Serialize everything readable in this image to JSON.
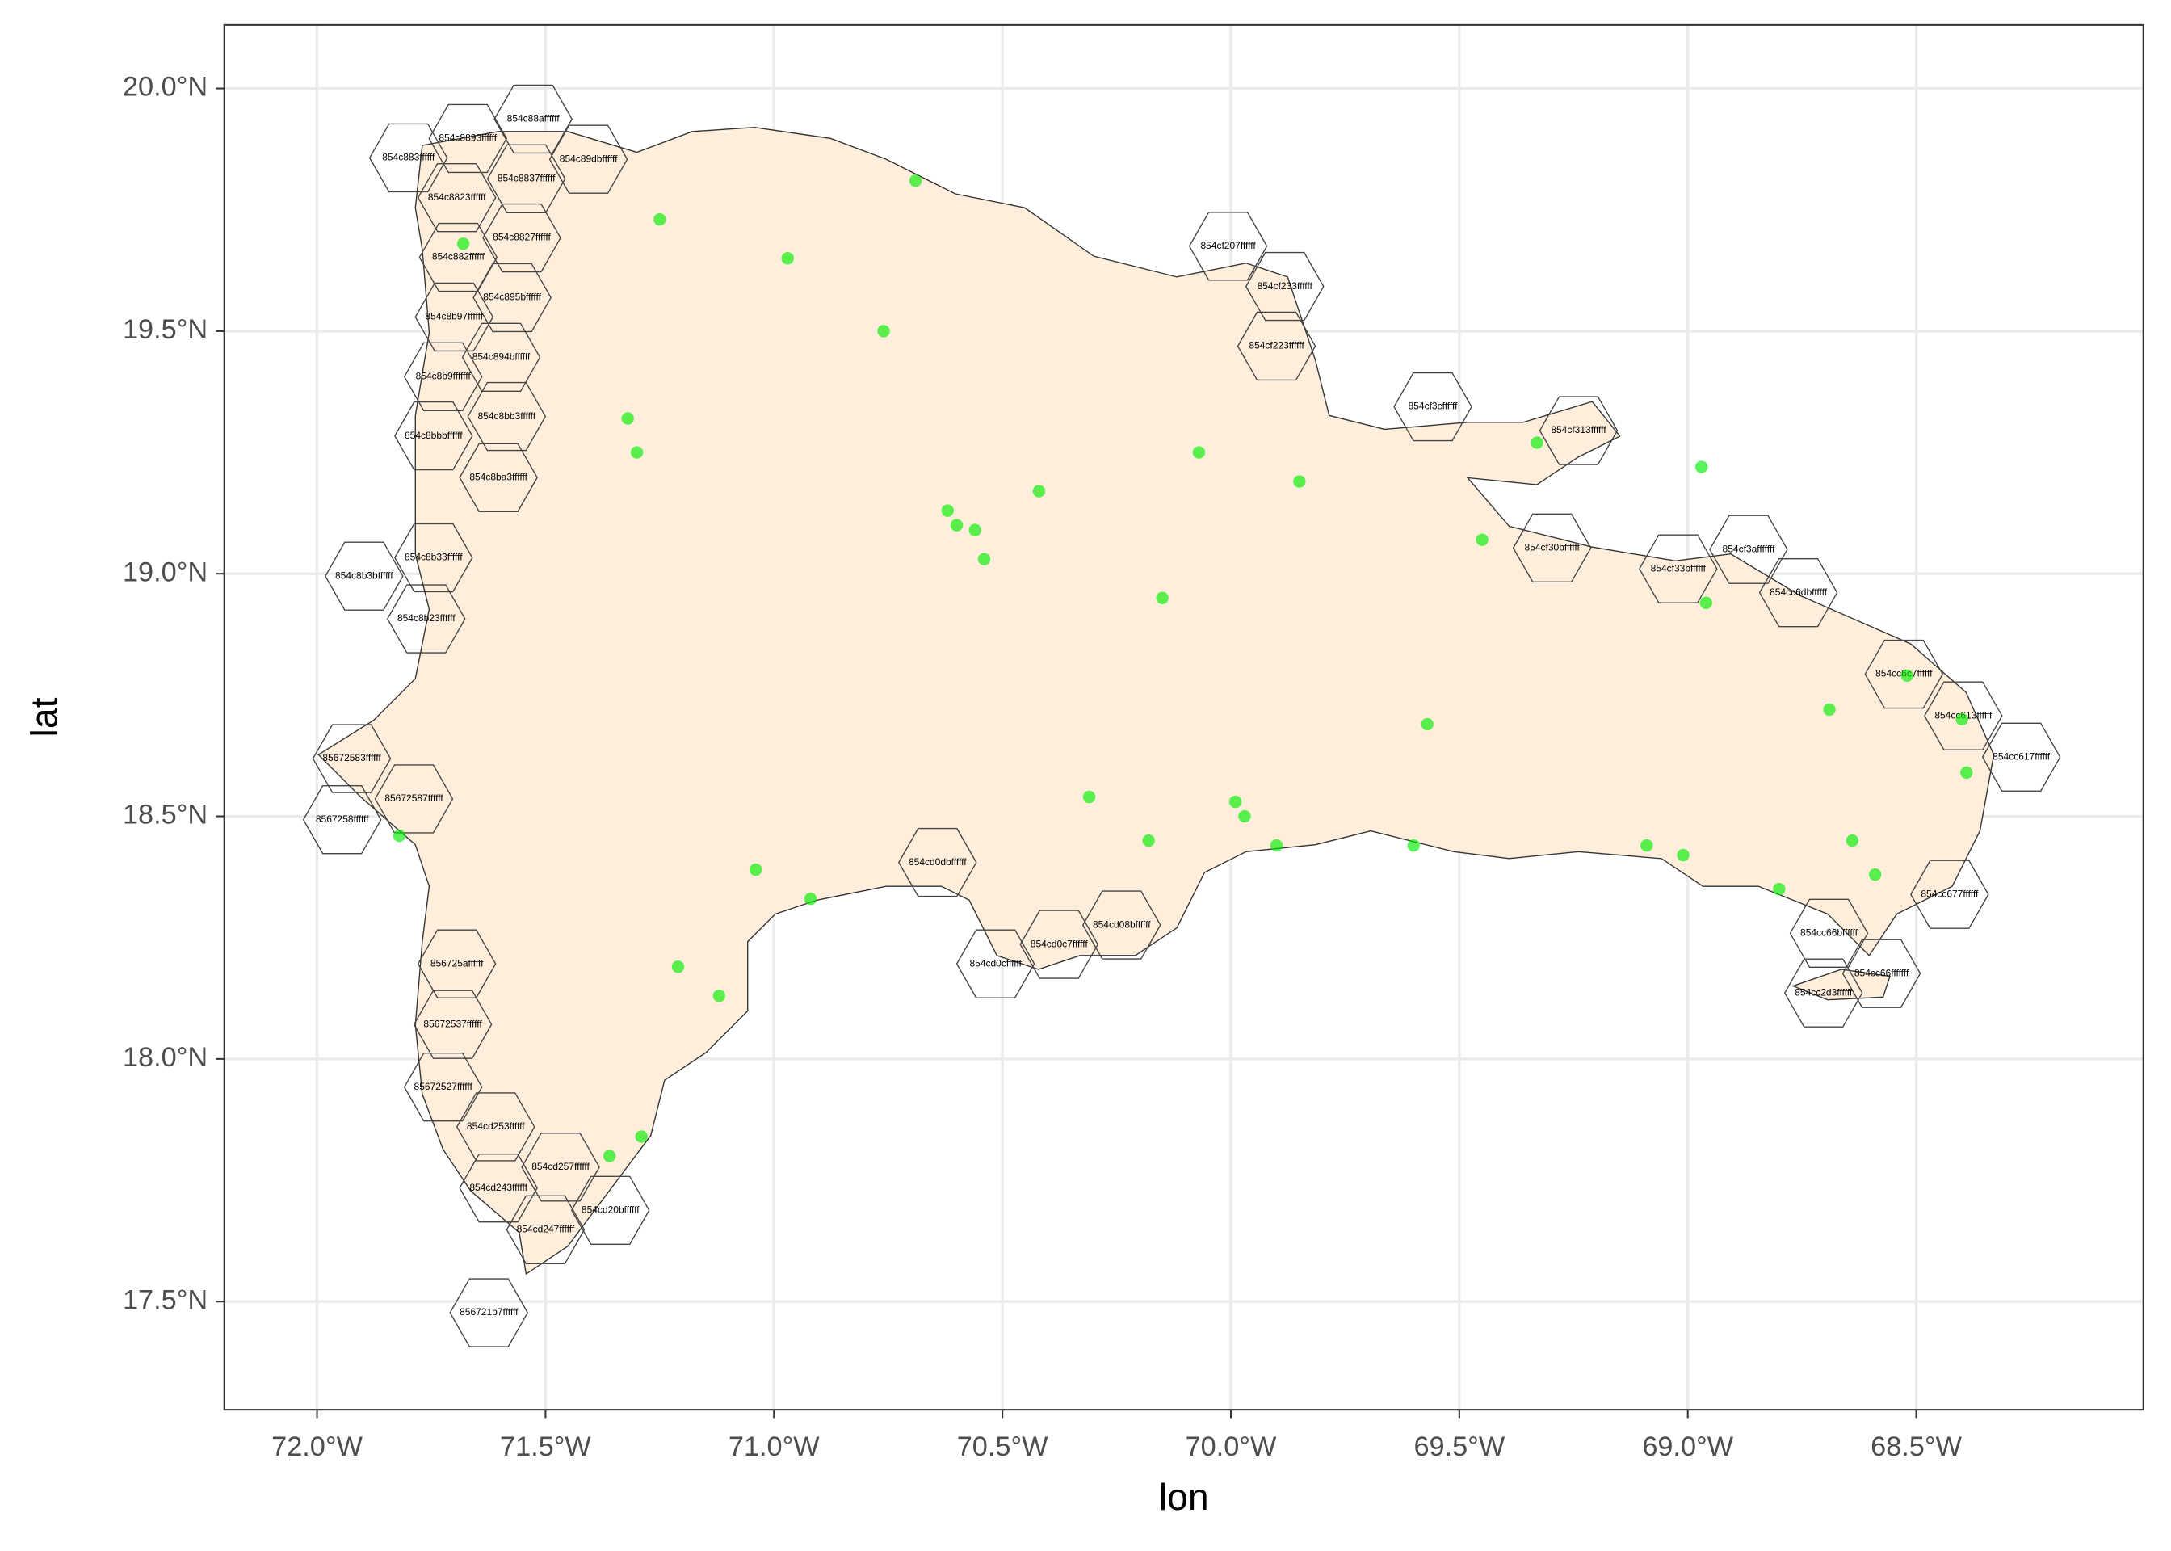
{
  "chart_data": {
    "type": "map",
    "xlabel": "lon",
    "ylabel": "lat",
    "xlim": [
      -72.203,
      -68.003
    ],
    "ylim": [
      17.277,
      20.131
    ],
    "xticks": [
      {
        "value": -72,
        "label": "72.0°W"
      },
      {
        "value": -71.5,
        "label": "71.5°W"
      },
      {
        "value": -71,
        "label": "71.0°W"
      },
      {
        "value": -70.5,
        "label": "70.5°W"
      },
      {
        "value": -70,
        "label": "70.0°W"
      },
      {
        "value": -69.5,
        "label": "69.5°W"
      },
      {
        "value": -69,
        "label": "69.0°W"
      },
      {
        "value": -68.5,
        "label": "68.5°W"
      }
    ],
    "yticks": [
      {
        "value": 17.5,
        "label": "17.5°N"
      },
      {
        "value": 18,
        "label": "18.0°N"
      },
      {
        "value": 18.5,
        "label": "18.5°N"
      },
      {
        "value": 19,
        "label": "19.0°N"
      },
      {
        "value": 19.5,
        "label": "19.5°N"
      },
      {
        "value": 20,
        "label": "20.0°N"
      }
    ],
    "grid": true,
    "land_color": "#feeedb",
    "hex_color": "#444444",
    "point_color": "#00ee00",
    "hexes": [
      {
        "label": "854c8893ffffff",
        "lon": -71.67,
        "lat": 19.897
      },
      {
        "label": "854c883ffffff",
        "lon": -71.8,
        "lat": 19.857
      },
      {
        "label": "854c88affffff",
        "lon": -71.527,
        "lat": 19.937
      },
      {
        "label": "854c8837ffffff",
        "lon": -71.542,
        "lat": 19.814
      },
      {
        "label": "854c8823ffffff",
        "lon": -71.694,
        "lat": 19.775
      },
      {
        "label": "854c89dbffffff",
        "lon": -71.406,
        "lat": 19.854
      },
      {
        "label": "854c8827ffffff",
        "lon": -71.552,
        "lat": 19.692
      },
      {
        "label": "854c882ffffff",
        "lon": -71.691,
        "lat": 19.652
      },
      {
        "label": "854c895bffffff",
        "lon": -71.573,
        "lat": 19.569
      },
      {
        "label": "854c8b97ffffff",
        "lon": -71.7,
        "lat": 19.529
      },
      {
        "label": "854c894bffffff",
        "lon": -71.597,
        "lat": 19.446
      },
      {
        "label": "854c8b9fffffff",
        "lon": -71.724,
        "lat": 19.406
      },
      {
        "label": "854c8bb3ffffff",
        "lon": -71.585,
        "lat": 19.324
      },
      {
        "label": "854c8bbbffffff",
        "lon": -71.745,
        "lat": 19.284
      },
      {
        "label": "854c8ba3ffffff",
        "lon": -71.603,
        "lat": 19.198
      },
      {
        "label": "854c8b33ffffff",
        "lon": -71.745,
        "lat": 19.033
      },
      {
        "label": "854c8b3bffffff",
        "lon": -71.897,
        "lat": 18.995
      },
      {
        "label": "854c8b23ffffff",
        "lon": -71.761,
        "lat": 18.907
      },
      {
        "label": "85672583ffffff",
        "lon": -71.924,
        "lat": 18.619
      },
      {
        "label": "85672587ffffff",
        "lon": -71.788,
        "lat": 18.536
      },
      {
        "label": "8567258ffffff",
        "lon": -71.945,
        "lat": 18.493
      },
      {
        "label": "856725affffff",
        "lon": -71.694,
        "lat": 18.196
      },
      {
        "label": "85672537ffffff",
        "lon": -71.703,
        "lat": 18.071
      },
      {
        "label": "85672527ffffff",
        "lon": -71.724,
        "lat": 17.942
      },
      {
        "label": "856721b7ffffff",
        "lon": -71.624,
        "lat": 17.477
      },
      {
        "label": "854cd243ffffff",
        "lon": -71.603,
        "lat": 17.734
      },
      {
        "label": "854cd247ffffff",
        "lon": -71.5,
        "lat": 17.648
      },
      {
        "label": "854cd20bffffff",
        "lon": -71.358,
        "lat": 17.688
      },
      {
        "label": "854cd257ffffff",
        "lon": -71.467,
        "lat": 17.777
      },
      {
        "label": "854cd253ffffff",
        "lon": -71.609,
        "lat": 17.86
      },
      {
        "label": "854cf207ffffff",
        "lon": -70.006,
        "lat": 19.675
      },
      {
        "label": "854cf233ffffff",
        "lon": -69.882,
        "lat": 19.592
      },
      {
        "label": "854cf223ffffff",
        "lon": -69.9,
        "lat": 19.469
      },
      {
        "label": "854cf3cffffff",
        "lon": -69.558,
        "lat": 19.344
      },
      {
        "label": "854cf313ffffff",
        "lon": -69.239,
        "lat": 19.295
      },
      {
        "label": "854cf30bffffff",
        "lon": -69.297,
        "lat": 19.053
      },
      {
        "label": "854cf33bffffff",
        "lon": -69.021,
        "lat": 19.01
      },
      {
        "label": "854cf3afffffff",
        "lon": -68.867,
        "lat": 19.05
      },
      {
        "label": "854cc6dbffffff",
        "lon": -68.758,
        "lat": 18.961
      },
      {
        "label": "854cc6c7ffffff",
        "lon": -68.527,
        "lat": 18.793
      },
      {
        "label": "854cc613ffffff",
        "lon": -68.397,
        "lat": 18.707
      },
      {
        "label": "854cc617ffffff",
        "lon": -68.27,
        "lat": 18.622
      },
      {
        "label": "854cc677ffffff",
        "lon": -68.427,
        "lat": 18.339
      },
      {
        "label": "854cc66bffffff",
        "lon": -68.691,
        "lat": 18.259
      },
      {
        "label": "854cc66fffffff",
        "lon": -68.576,
        "lat": 18.176
      },
      {
        "label": "854cc2d3ffffff",
        "lon": -68.703,
        "lat": 18.136
      },
      {
        "label": "854cd0c7ffffff",
        "lon": -70.376,
        "lat": 18.236
      },
      {
        "label": "854cd0cffffff",
        "lon": -70.515,
        "lat": 18.196
      },
      {
        "label": "854cd08bffffff",
        "lon": -70.239,
        "lat": 18.276
      },
      {
        "label": "854cd0dbffffff",
        "lon": -70.642,
        "lat": 18.405
      }
    ],
    "points": {
      "lon": [
        -70.69,
        -71.25,
        -70.97,
        -70.62,
        -70.6,
        -70.56,
        -71.04,
        -68.8,
        -68.4,
        -68.39,
        -68.69,
        -69.99,
        -69.97,
        -69.45,
        -69.33,
        -68.97,
        -71.36,
        -71.29,
        -71.82,
        -71.68,
        -71.32,
        -71.3,
        -70.76,
        -70.54,
        -70.42,
        -70.15,
        -70.07,
        -69.85,
        -69.57,
        -69.09,
        -69.01,
        -68.59,
        -68.96,
        -68.64,
        -70.92,
        -71.21,
        -71.12,
        -70.31,
        -70.18,
        -69.9,
        -69.6,
        -68.52
      ],
      "lat": [
        19.81,
        19.73,
        19.65,
        19.13,
        19.1,
        19.09,
        18.39,
        18.35,
        18.7,
        18.59,
        18.72,
        18.53,
        18.5,
        19.07,
        19.27,
        19.22,
        17.8,
        17.84,
        18.46,
        19.68,
        19.32,
        19.25,
        19.5,
        19.03,
        19.17,
        18.95,
        19.25,
        19.19,
        18.69,
        18.44,
        18.42,
        18.38,
        18.94,
        18.45,
        18.33,
        18.19,
        18.13,
        18.54,
        18.45,
        18.44,
        18.44,
        18.79
      ]
    }
  }
}
